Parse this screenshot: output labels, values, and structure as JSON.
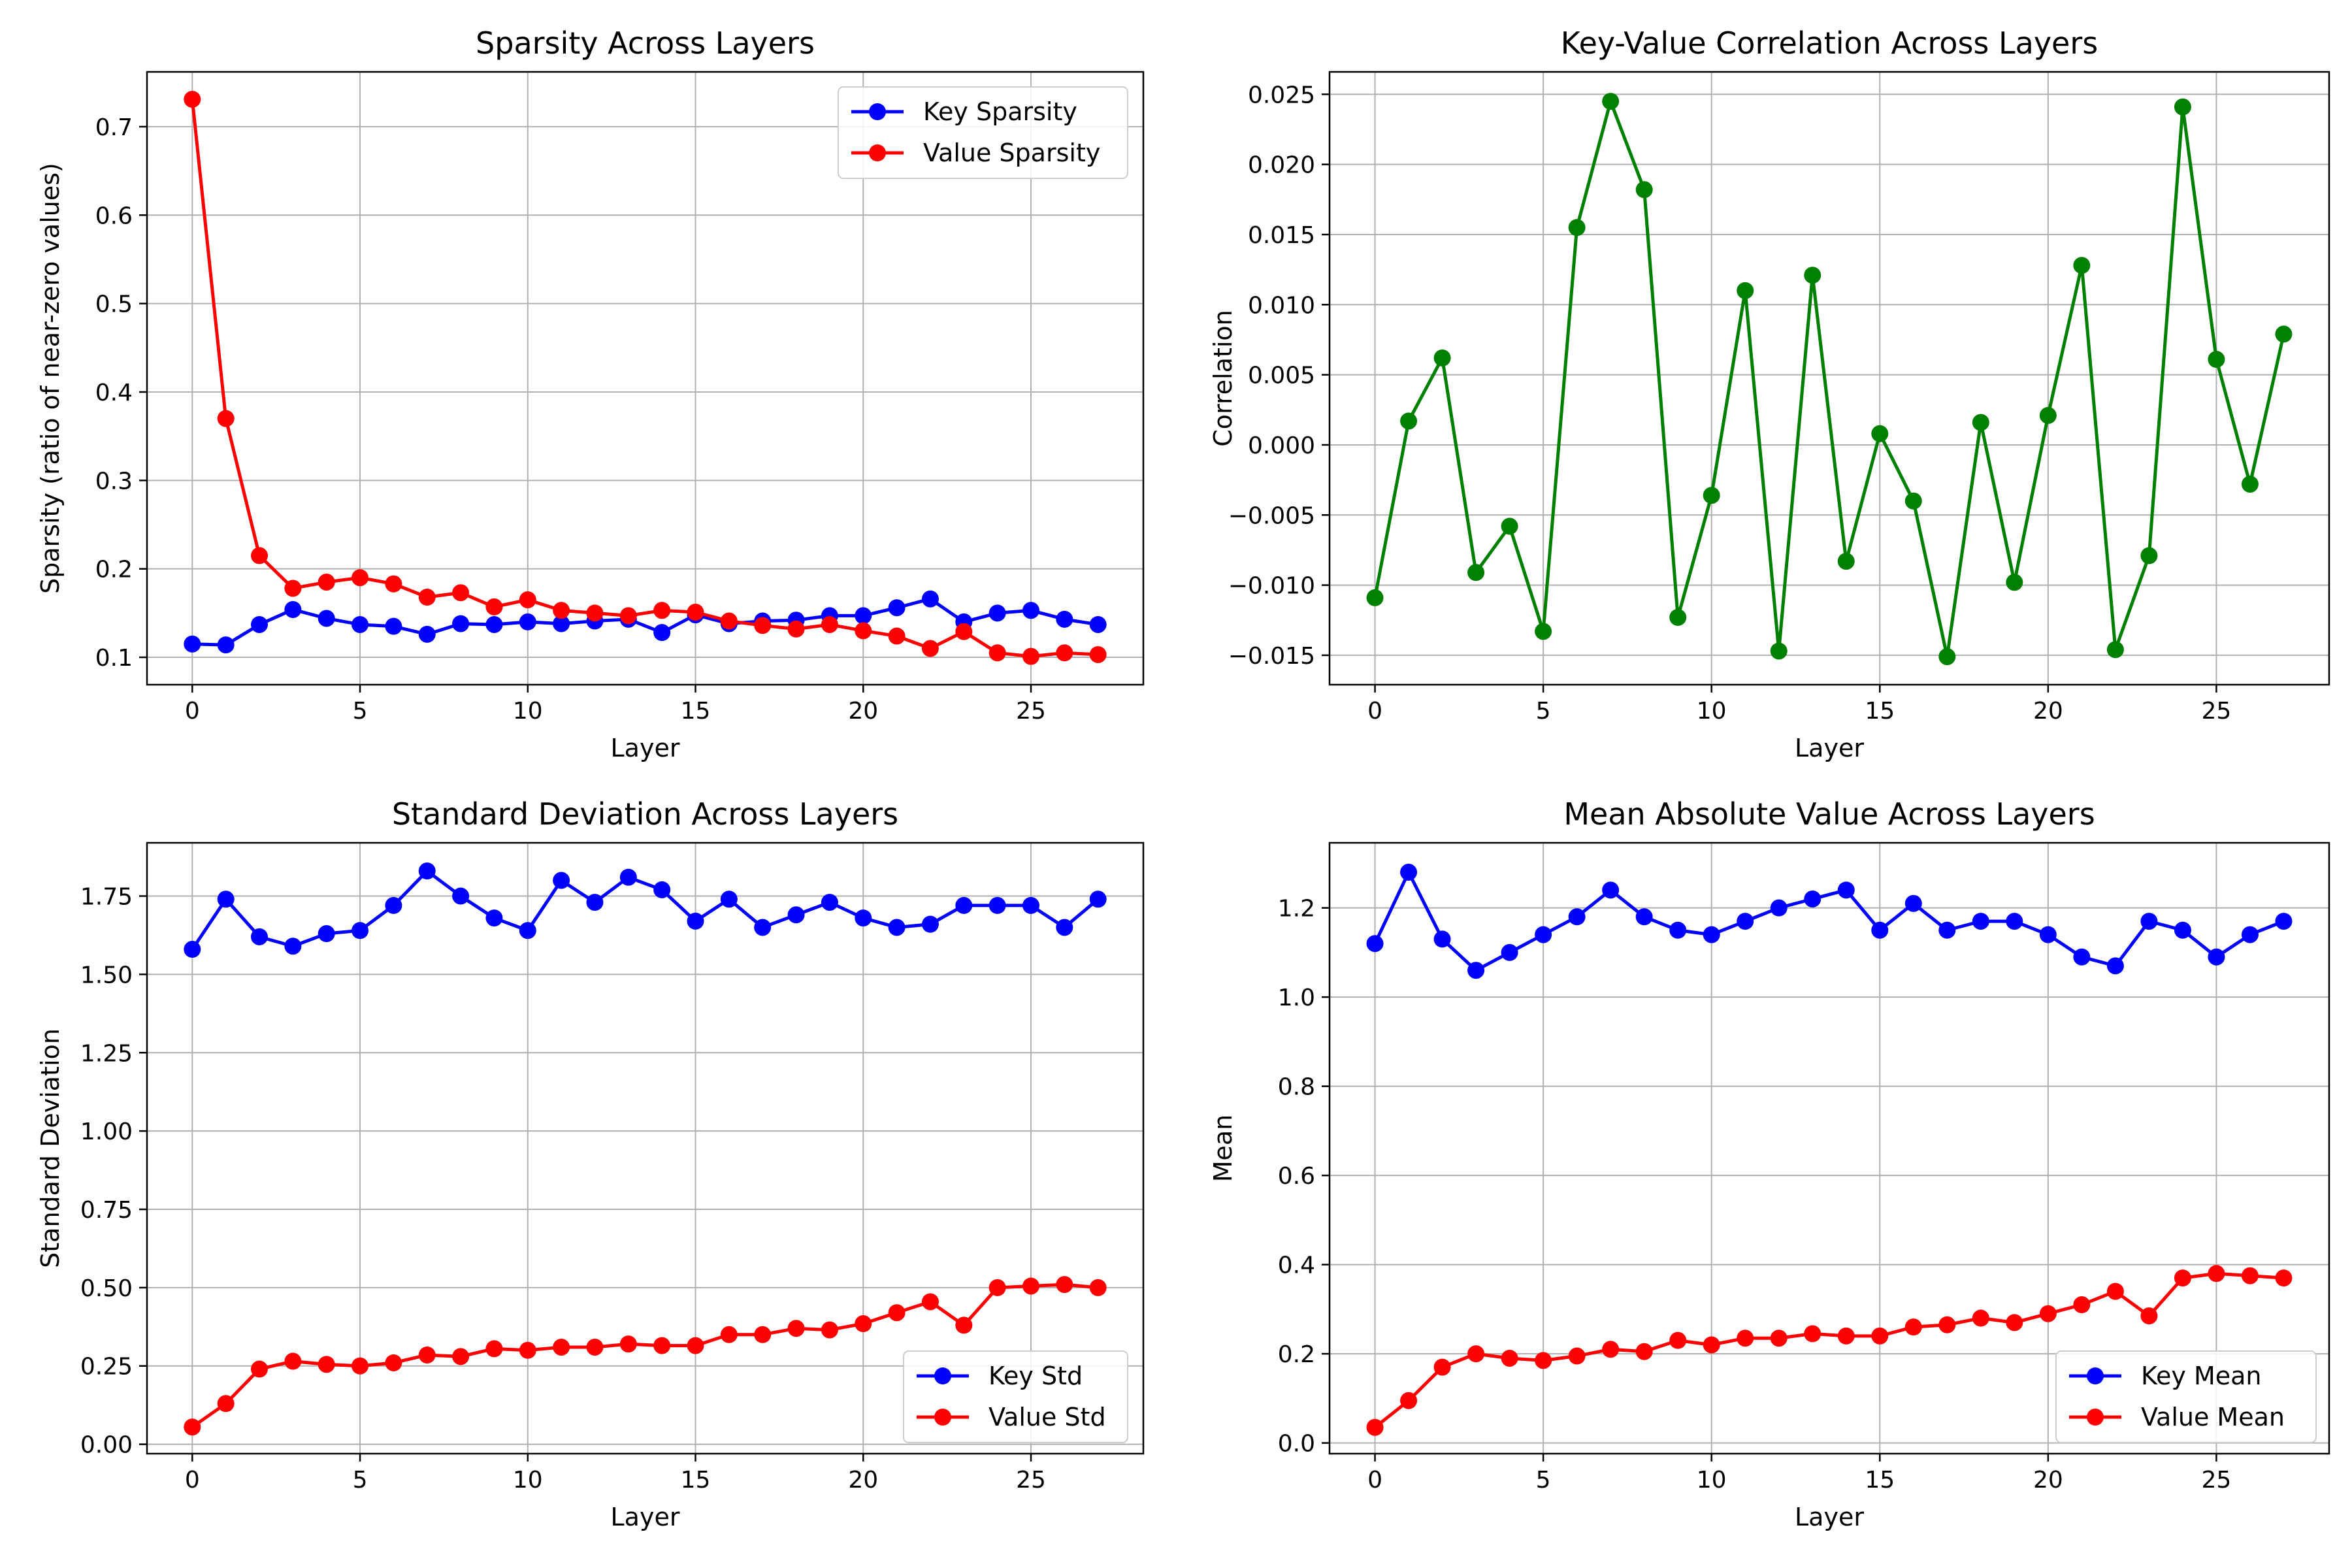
{
  "chart_data": [
    {
      "type": "line",
      "title": "Sparsity Across Layers",
      "xlabel": "Layer",
      "ylabel": "Sparsity (ratio of near-zero values)",
      "xlim": [
        -1.35,
        28.35
      ],
      "ylim": [
        0.069,
        0.762
      ],
      "xticks": [
        0,
        5,
        10,
        15,
        20,
        25
      ],
      "xtick_labels": [
        "0",
        "5",
        "10",
        "15",
        "20",
        "25"
      ],
      "yticks": [
        0.1,
        0.2,
        0.3,
        0.4,
        0.5,
        0.6,
        0.7
      ],
      "ytick_labels": [
        "0.1",
        "0.2",
        "0.3",
        "0.4",
        "0.5",
        "0.6",
        "0.7"
      ],
      "grid": true,
      "legend": "upper right",
      "x": [
        0,
        1,
        2,
        3,
        4,
        5,
        6,
        7,
        8,
        9,
        10,
        11,
        12,
        13,
        14,
        15,
        16,
        17,
        18,
        19,
        20,
        21,
        22,
        23,
        24,
        25,
        26,
        27
      ],
      "series": [
        {
          "name": "Key Sparsity",
          "color": "#0000ff",
          "values": [
            0.115,
            0.114,
            0.137,
            0.154,
            0.144,
            0.137,
            0.135,
            0.126,
            0.138,
            0.137,
            0.14,
            0.138,
            0.141,
            0.143,
            0.128,
            0.148,
            0.138,
            0.141,
            0.142,
            0.147,
            0.147,
            0.156,
            0.166,
            0.14,
            0.15,
            0.153,
            0.143,
            0.137
          ]
        },
        {
          "name": "Value Sparsity",
          "color": "#ff0000",
          "values": [
            0.731,
            0.37,
            0.215,
            0.178,
            0.185,
            0.19,
            0.183,
            0.168,
            0.173,
            0.157,
            0.165,
            0.153,
            0.15,
            0.147,
            0.153,
            0.151,
            0.141,
            0.136,
            0.132,
            0.137,
            0.13,
            0.124,
            0.11,
            0.129,
            0.105,
            0.101,
            0.105,
            0.103
          ]
        }
      ]
    },
    {
      "type": "line",
      "title": "Key-Value Correlation Across Layers",
      "xlabel": "Layer",
      "ylabel": "Correlation",
      "xlim": [
        -1.35,
        28.35
      ],
      "ylim": [
        -0.0171,
        0.0266
      ],
      "xticks": [
        0,
        5,
        10,
        15,
        20,
        25
      ],
      "xtick_labels": [
        "0",
        "5",
        "10",
        "15",
        "20",
        "25"
      ],
      "yticks": [
        -0.015,
        -0.01,
        -0.005,
        0.0,
        0.005,
        0.01,
        0.015,
        0.02,
        0.025
      ],
      "ytick_labels": [
        "−0.015",
        "−0.010",
        "−0.005",
        "0.000",
        "0.005",
        "0.010",
        "0.015",
        "0.020",
        "0.025"
      ],
      "grid": true,
      "legend": "none",
      "x": [
        0,
        1,
        2,
        3,
        4,
        5,
        6,
        7,
        8,
        9,
        10,
        11,
        12,
        13,
        14,
        15,
        16,
        17,
        18,
        19,
        20,
        21,
        22,
        23,
        24,
        25,
        26,
        27
      ],
      "series": [
        {
          "color": "#008000",
          "values": [
            -0.0109,
            0.0017,
            0.0062,
            -0.0091,
            -0.0058,
            -0.0133,
            0.0155,
            0.0245,
            0.0182,
            -0.0123,
            -0.0036,
            0.011,
            -0.0147,
            0.0121,
            -0.0083,
            0.0008,
            -0.004,
            -0.0151,
            0.0016,
            -0.0098,
            0.0021,
            0.0128,
            -0.0146,
            -0.0079,
            0.0241,
            0.0061,
            -0.0028,
            0.0079
          ]
        }
      ]
    },
    {
      "type": "line",
      "title": "Standard Deviation Across Layers",
      "xlabel": "Layer",
      "ylabel": "Standard Deviation",
      "xlim": [
        -1.35,
        28.35
      ],
      "ylim": [
        -0.03,
        1.92
      ],
      "xticks": [
        0,
        5,
        10,
        15,
        20,
        25
      ],
      "xtick_labels": [
        "0",
        "5",
        "10",
        "15",
        "20",
        "25"
      ],
      "yticks": [
        0.0,
        0.25,
        0.5,
        0.75,
        1.0,
        1.25,
        1.5,
        1.75
      ],
      "ytick_labels": [
        "0.00",
        "0.25",
        "0.50",
        "0.75",
        "1.00",
        "1.25",
        "1.50",
        "1.75"
      ],
      "grid": true,
      "legend": "lower right",
      "x": [
        0,
        1,
        2,
        3,
        4,
        5,
        6,
        7,
        8,
        9,
        10,
        11,
        12,
        13,
        14,
        15,
        16,
        17,
        18,
        19,
        20,
        21,
        22,
        23,
        24,
        25,
        26,
        27
      ],
      "series": [
        {
          "name": "Key Std",
          "color": "#0000ff",
          "values": [
            1.58,
            1.74,
            1.62,
            1.59,
            1.63,
            1.64,
            1.72,
            1.83,
            1.75,
            1.68,
            1.64,
            1.8,
            1.73,
            1.81,
            1.77,
            1.67,
            1.74,
            1.65,
            1.69,
            1.73,
            1.68,
            1.65,
            1.66,
            1.72,
            1.72,
            1.72,
            1.65,
            1.74
          ]
        },
        {
          "name": "Value Std",
          "color": "#ff0000",
          "values": [
            0.055,
            0.13,
            0.24,
            0.265,
            0.255,
            0.25,
            0.26,
            0.285,
            0.28,
            0.305,
            0.3,
            0.31,
            0.31,
            0.32,
            0.315,
            0.315,
            0.35,
            0.35,
            0.37,
            0.365,
            0.385,
            0.42,
            0.455,
            0.38,
            0.5,
            0.505,
            0.51,
            0.5
          ]
        }
      ]
    },
    {
      "type": "line",
      "title": "Mean Absolute Value Across Layers",
      "xlabel": "Layer",
      "ylabel": "Mean",
      "xlim": [
        -1.35,
        28.35
      ],
      "ylim": [
        -0.024,
        1.346
      ],
      "xticks": [
        0,
        5,
        10,
        15,
        20,
        25
      ],
      "xtick_labels": [
        "0",
        "5",
        "10",
        "15",
        "20",
        "25"
      ],
      "yticks": [
        0.0,
        0.2,
        0.4,
        0.6,
        0.8,
        1.0,
        1.2
      ],
      "ytick_labels": [
        "0.0",
        "0.2",
        "0.4",
        "0.6",
        "0.8",
        "1.0",
        "1.2"
      ],
      "grid": true,
      "legend": "lower right",
      "x": [
        0,
        1,
        2,
        3,
        4,
        5,
        6,
        7,
        8,
        9,
        10,
        11,
        12,
        13,
        14,
        15,
        16,
        17,
        18,
        19,
        20,
        21,
        22,
        23,
        24,
        25,
        26,
        27
      ],
      "series": [
        {
          "name": "Key Mean",
          "color": "#0000ff",
          "values": [
            1.12,
            1.28,
            1.13,
            1.06,
            1.1,
            1.14,
            1.18,
            1.24,
            1.18,
            1.15,
            1.14,
            1.17,
            1.2,
            1.22,
            1.24,
            1.15,
            1.21,
            1.15,
            1.17,
            1.17,
            1.14,
            1.09,
            1.07,
            1.17,
            1.15,
            1.09,
            1.14,
            1.17
          ]
        },
        {
          "name": "Value Mean",
          "color": "#ff0000",
          "values": [
            0.035,
            0.095,
            0.17,
            0.2,
            0.19,
            0.185,
            0.195,
            0.21,
            0.205,
            0.23,
            0.22,
            0.235,
            0.235,
            0.245,
            0.24,
            0.24,
            0.26,
            0.265,
            0.28,
            0.27,
            0.29,
            0.31,
            0.34,
            0.285,
            0.37,
            0.38,
            0.375,
            0.37
          ]
        }
      ]
    }
  ]
}
